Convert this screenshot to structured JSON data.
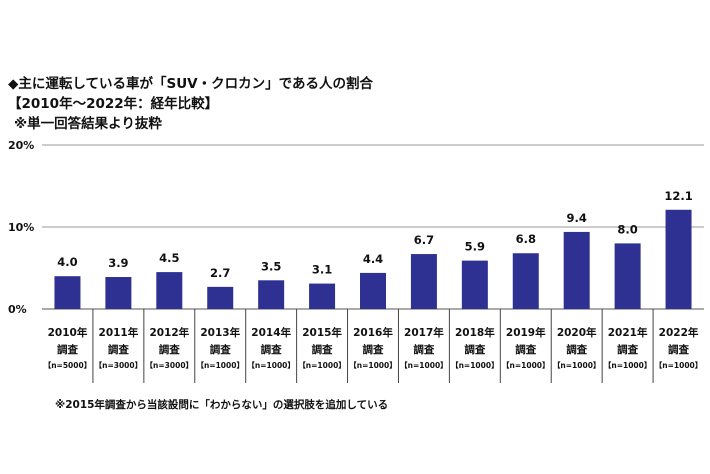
{
  "chart_data": {
    "type": "bar",
    "title": "◆主に運転している車が「SUV・クロカン」である人の割合",
    "subtitle": "【2010年～2022年：経年比較】",
    "subnote": "※単一回答結果より抜粋",
    "footnote": "※2015年調査から当該設問に「わからない」の選択肢を追加している",
    "categories": [
      "2010年",
      "2011年",
      "2012年",
      "2013年",
      "2014年",
      "2015年",
      "2016年",
      "2017年",
      "2018年",
      "2019年",
      "2020年",
      "2021年",
      "2022年"
    ],
    "category_sub": "調査",
    "sample_sizes": [
      "【n=5000】",
      "【n=3000】",
      "【n=3000】",
      "【n=1000】",
      "【n=1000】",
      "【n=1000】",
      "【n=1000】",
      "【n=1000】",
      "【n=1000】",
      "【n=1000】",
      "【n=1000】",
      "【n=1000】",
      "【n=1000】"
    ],
    "values": [
      4.0,
      3.9,
      4.5,
      2.7,
      3.5,
      3.1,
      4.4,
      6.7,
      5.9,
      6.8,
      9.4,
      8.0,
      12.1
    ],
    "value_labels": [
      "4.0",
      "3.9",
      "4.5",
      "2.7",
      "3.5",
      "3.1",
      "4.4",
      "6.7",
      "5.9",
      "6.8",
      "9.4",
      "8.0",
      "12.1"
    ],
    "ylim": [
      0,
      20
    ],
    "yticks": [
      "0%",
      "10%",
      "20%"
    ],
    "ytick_values": [
      0,
      10,
      20
    ],
    "grid": true,
    "bar_color": "#2e3192"
  }
}
